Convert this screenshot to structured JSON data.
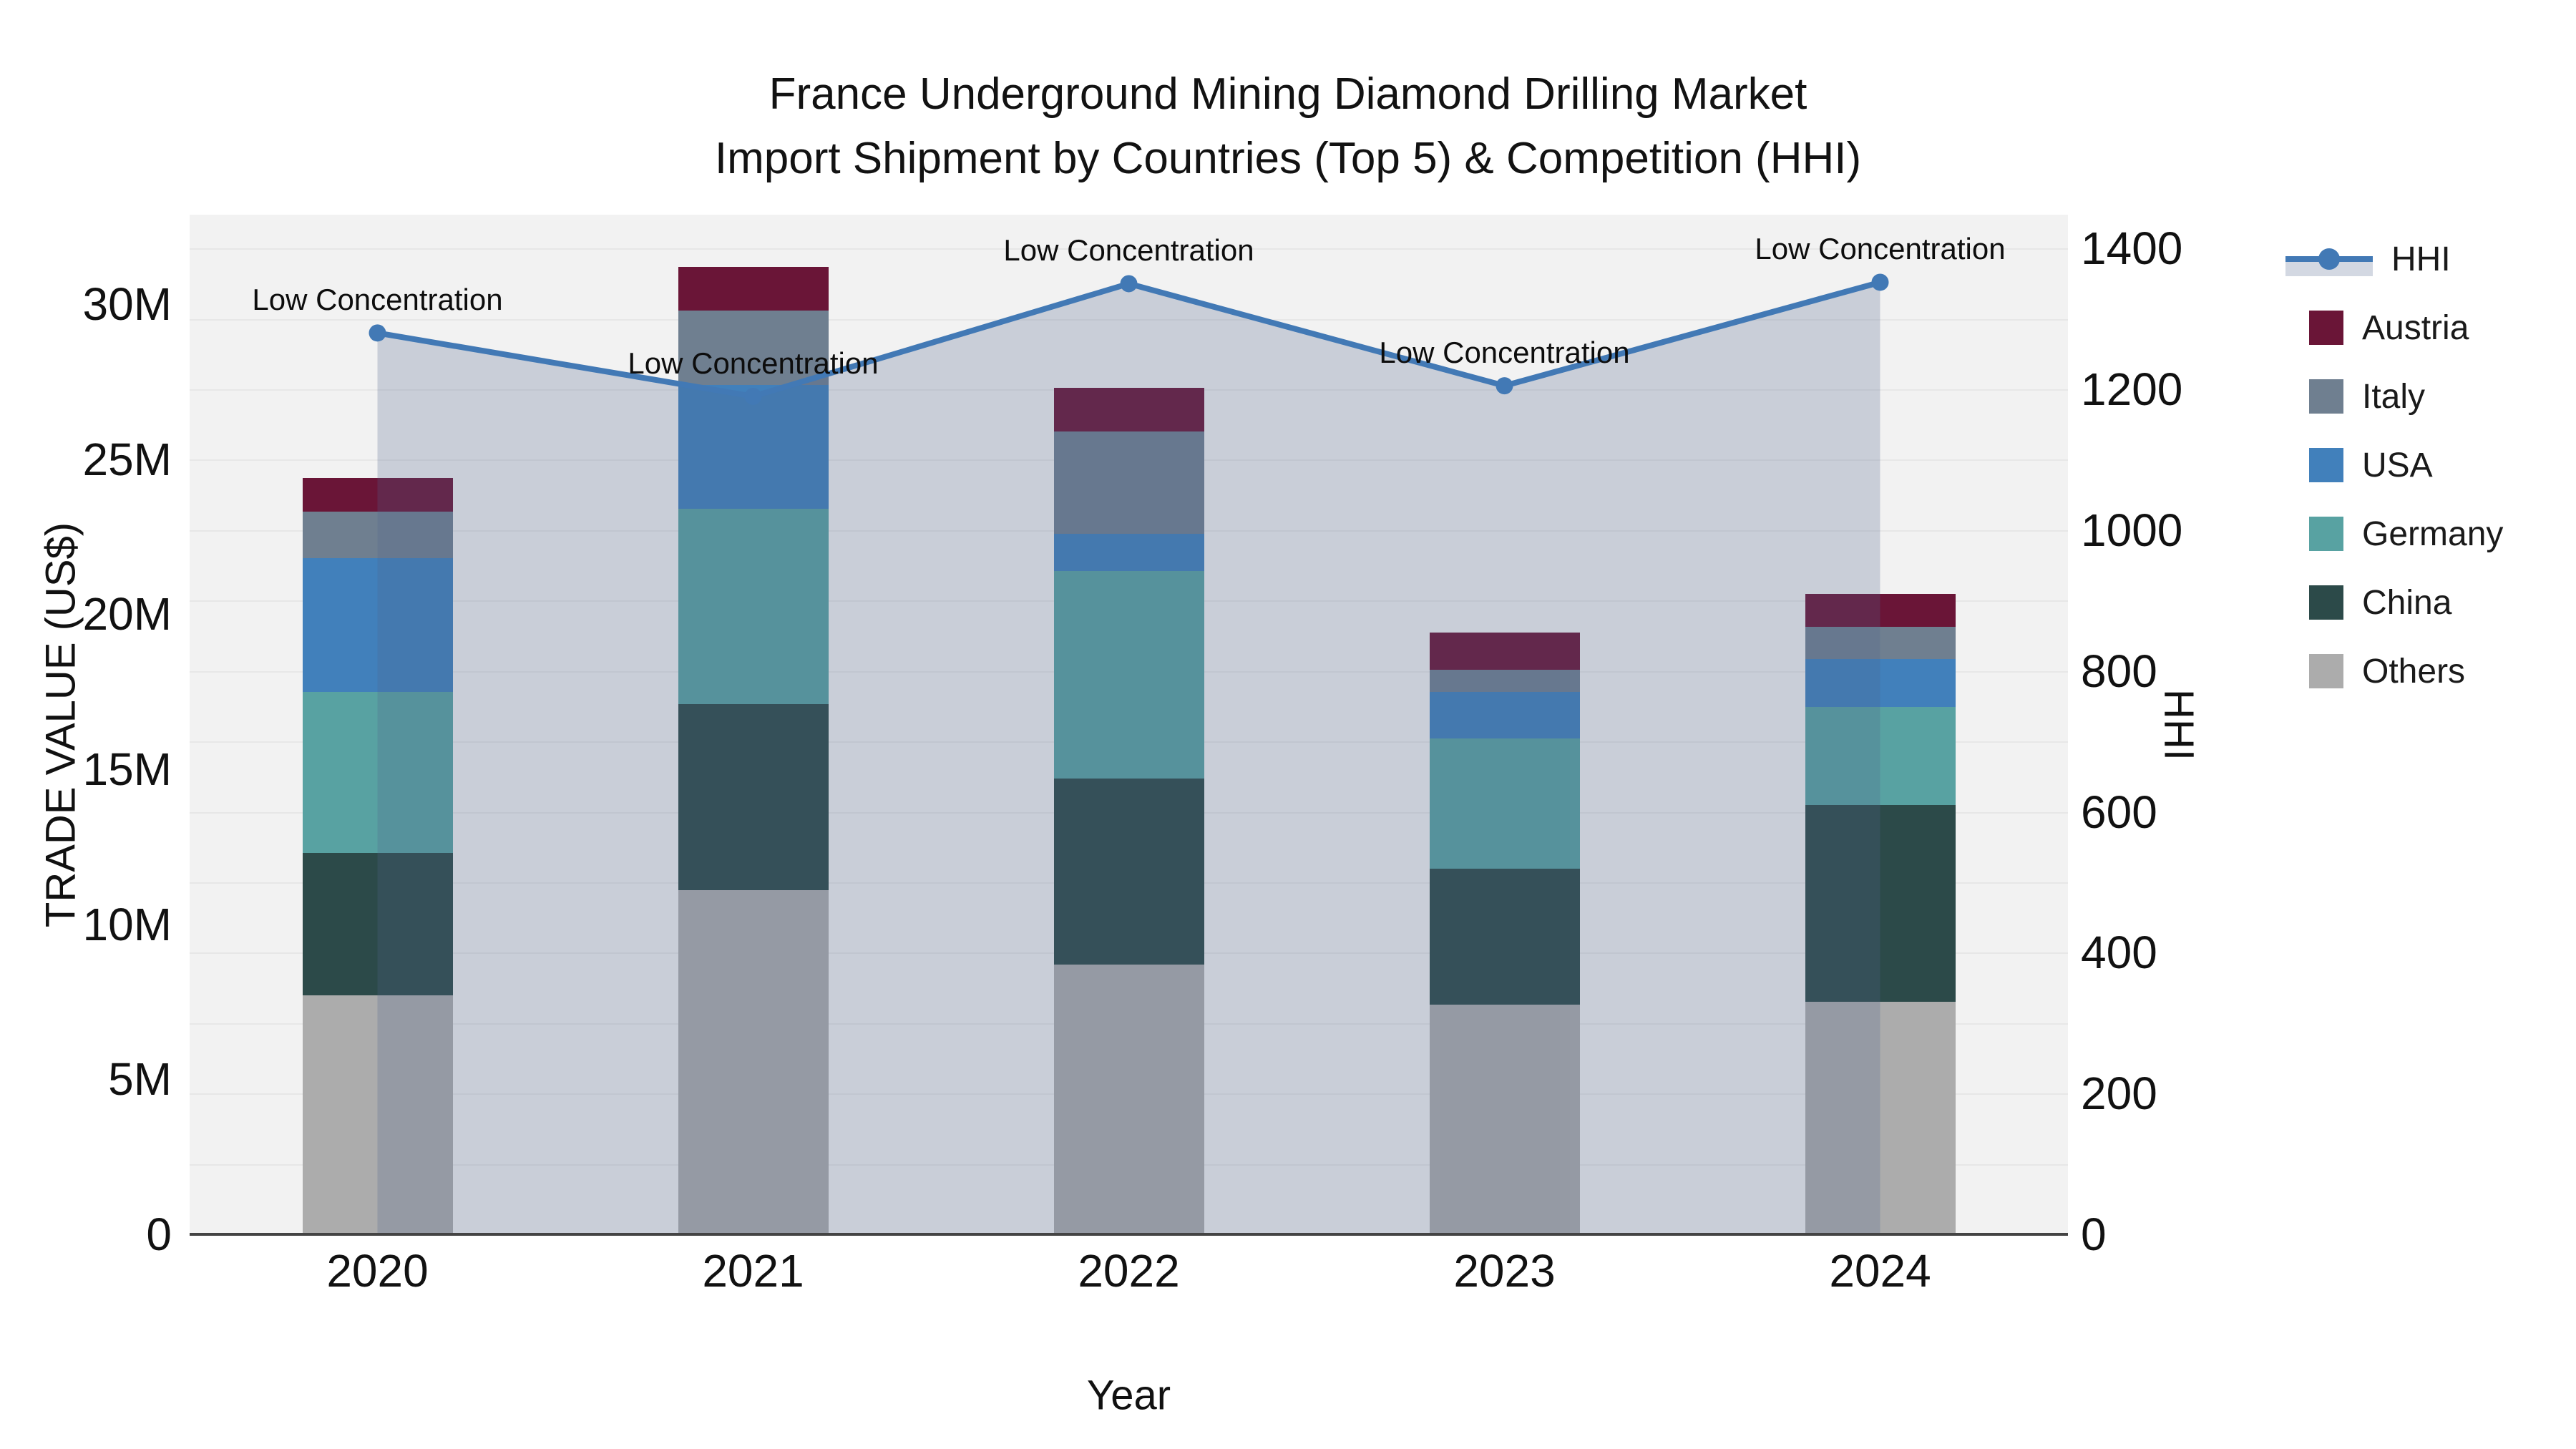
{
  "chart_data": {
    "type": "bar",
    "subtype": "stacked-bar-with-line",
    "title_line1": "France Underground Mining Diamond Drilling Market",
    "title_line2": "Import Shipment by Countries (Top 5) & Competition (HHI)",
    "categories": [
      "2020",
      "2021",
      "2022",
      "2023",
      "2024"
    ],
    "series": [
      {
        "name": "Austria",
        "color": "#6a1537",
        "values": [
          1.1,
          1.4,
          1.4,
          1.2,
          1.05
        ]
      },
      {
        "name": "Italy",
        "color": "#6f7f90",
        "values": [
          1.5,
          2.4,
          3.3,
          0.7,
          1.05
        ]
      },
      {
        "name": "USA",
        "color": "#4180bb",
        "values": [
          4.3,
          4.0,
          1.2,
          1.5,
          1.55
        ]
      },
      {
        "name": "Germany",
        "color": "#58a2a2",
        "values": [
          5.2,
          6.3,
          6.7,
          4.2,
          3.15
        ]
      },
      {
        "name": "China",
        "color": "#2c4a49",
        "values": [
          4.6,
          6.0,
          6.0,
          4.4,
          6.35
        ]
      },
      {
        "name": "Others",
        "color": "#acacac",
        "values": [
          7.7,
          11.1,
          8.7,
          7.4,
          7.5
        ]
      }
    ],
    "stack_order_bottom_to_top": [
      "Others",
      "China",
      "Germany",
      "USA",
      "Italy",
      "Austria"
    ],
    "line_series": {
      "name": "HHI",
      "color": "#4279b5",
      "area_fill": "rgba(78,98,138,0.25)",
      "values": [
        1280,
        1190,
        1350,
        1205,
        1352
      ]
    },
    "annotation_label": "Low Concentration",
    "xlabel": "Year",
    "ylabel_left": "TRADE VALUE (US$)",
    "ylabel_right": "HHI",
    "yaxis_left": {
      "max_m": 32.89,
      "tick_values_m": [
        0,
        5,
        10,
        15,
        20,
        25,
        30
      ],
      "tick_labels": [
        "0",
        "5M",
        "10M",
        "15M",
        "20M",
        "25M",
        "30M"
      ]
    },
    "yaxis_right": {
      "max": 1448,
      "tick_values": [
        0,
        200,
        400,
        600,
        800,
        1000,
        1200,
        1400
      ],
      "grid_step": 100
    },
    "grid_on": true,
    "legend_position": "right",
    "legend_entries": [
      "HHI",
      "Austria",
      "Italy",
      "USA",
      "Germany",
      "China",
      "Others"
    ],
    "colors": {
      "plot_bg": "#f2f2f2",
      "gridline": "#e7e7e7",
      "axis_line": "#444444",
      "text": "#111111"
    }
  }
}
